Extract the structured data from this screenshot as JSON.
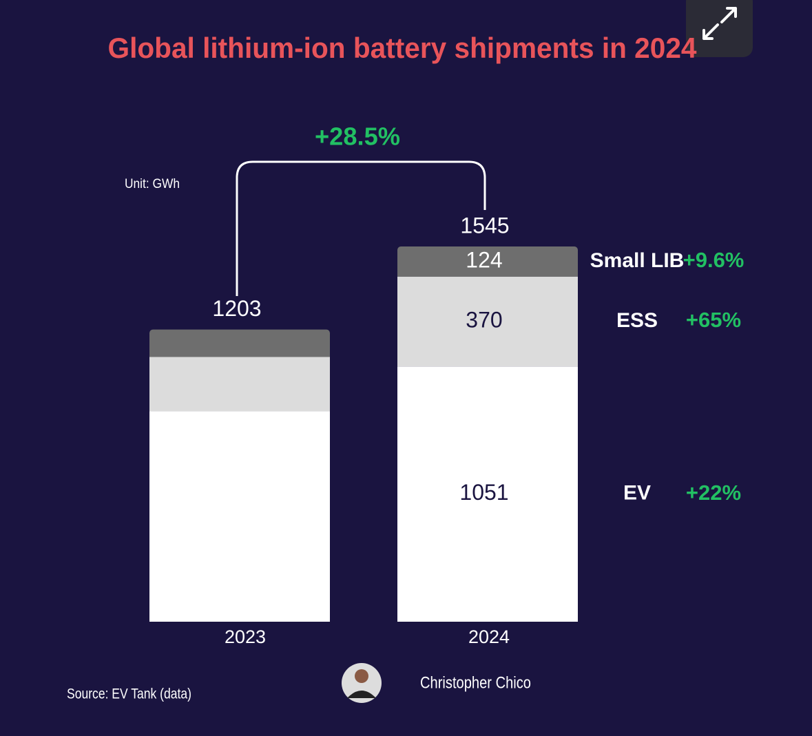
{
  "chart_data": {
    "type": "stacked-bar",
    "title": "Global lithium-ion battery shipments in 2024",
    "unit": "Unit: GWh",
    "categories": [
      "2023",
      "2024"
    ],
    "totals": [
      1203,
      1545
    ],
    "total_growth": "+28.5%",
    "series": [
      {
        "name": "EV",
        "color": "#ffffff",
        "values": [
          866,
          1051
        ],
        "growth": "+22%"
      },
      {
        "name": "ESS",
        "color": "#dcdcdc",
        "values": [
          224,
          370
        ],
        "growth": "+65%"
      },
      {
        "name": "Small LIB",
        "color": "#6e6e6e",
        "values": [
          113,
          124
        ],
        "growth": "+9.6%"
      }
    ],
    "labelled_category": 1
  },
  "source": "Source: EV Tank (data)",
  "author": "Christopher Chico"
}
